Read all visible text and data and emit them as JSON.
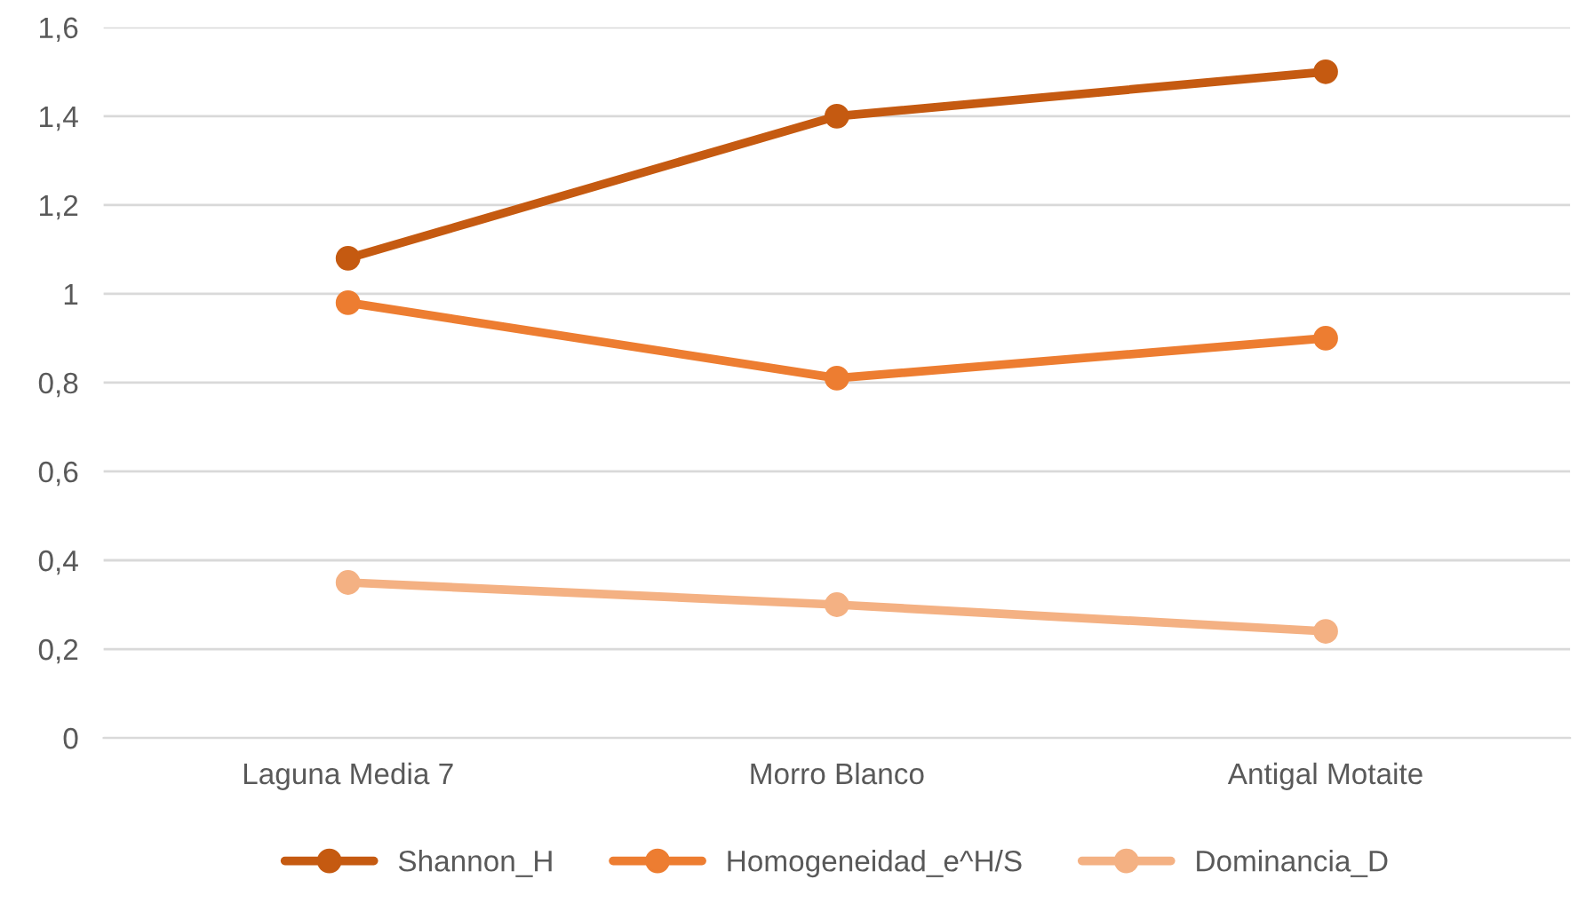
{
  "chart_data": {
    "type": "line",
    "categories": [
      "Laguna Media 7",
      "Morro Blanco",
      "Antigal Motaite"
    ],
    "series": [
      {
        "name": "Shannon_H",
        "color": "#c55a11",
        "values": [
          1.08,
          1.4,
          1.5
        ]
      },
      {
        "name": "Homogeneidad_e^H/S",
        "color": "#ed7d31",
        "values": [
          0.98,
          0.81,
          0.9
        ]
      },
      {
        "name": "Dominancia_D",
        "color": "#f4b183",
        "values": [
          0.35,
          0.3,
          0.24
        ]
      }
    ],
    "ylim": [
      0,
      1.6
    ],
    "yticks": [
      0,
      {
        "value": 0.2,
        "label": "0,2"
      },
      {
        "value": 0.4,
        "label": "0,4"
      },
      {
        "value": 0.6,
        "label": "0,6"
      },
      {
        "value": 0.8,
        "label": "0,8"
      },
      1,
      {
        "value": 1.2,
        "label": "1,2"
      },
      {
        "value": 1.4,
        "label": "1,4"
      },
      {
        "value": 1.6,
        "label": "1,6"
      }
    ],
    "grid": "y",
    "legend": "bottom",
    "marker": "circle",
    "line_style": "solid"
  }
}
